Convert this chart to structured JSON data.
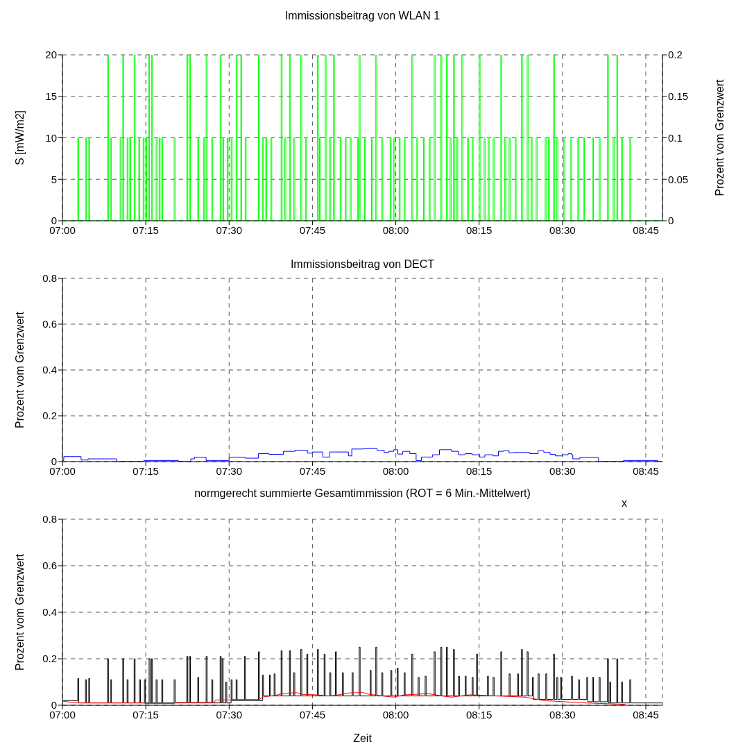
{
  "chart_data": [
    {
      "type": "line",
      "title": "Immissionsbeitrag von WLAN 1",
      "ylabel": "S [mW/m2]",
      "y2label": "Prozent vom Grenzwert",
      "xlim": [
        7,
        8.8
      ],
      "xticks": [
        {
          "value": 7,
          "label": "07:00"
        },
        {
          "value": 7.25,
          "label": "07:15"
        },
        {
          "value": 7.5,
          "label": "07:30"
        },
        {
          "value": 7.75,
          "label": "07:45"
        },
        {
          "value": 8,
          "label": "08:00"
        },
        {
          "value": 8.25,
          "label": "08:15"
        },
        {
          "value": 8.5,
          "label": "08:30"
        },
        {
          "value": 8.75,
          "label": "08:45"
        }
      ],
      "ylim": [
        0,
        20
      ],
      "yticks": [
        0,
        5,
        10,
        15,
        20
      ],
      "y2lim": [
        0,
        0.2
      ],
      "y2ticks": [
        0,
        0.05,
        0.1,
        0.15,
        0.2
      ],
      "grid": true,
      "series": [
        {
          "type": "step",
          "color": "#00ff00",
          "x": [
            7,
            7.046,
            7.049,
            7.069,
            7.072,
            7.079,
            7.082,
            7.135,
            7.138,
            7.144,
            7.147,
            7.173,
            7.176,
            7.181,
            7.184,
            7.194,
            7.197,
            7.202,
            7.205,
            7.215,
            7.218,
            7.229,
            7.232,
            7.242,
            7.245,
            7.25,
            7.253,
            7.258,
            7.261,
            7.267,
            7.27,
            7.281,
            7.284,
            7.29,
            7.293,
            7.298,
            7.301,
            7.335,
            7.338,
            7.373,
            7.376,
            7.381,
            7.384,
            7.406,
            7.409,
            7.423,
            7.426,
            7.431,
            7.434,
            7.448,
            7.451,
            7.473,
            7.476,
            7.481,
            7.484,
            7.494,
            7.497,
            7.506,
            7.509,
            7.521,
            7.524,
            7.535,
            7.538,
            7.548,
            7.551,
            7.588,
            7.591,
            7.6,
            7.603,
            7.61,
            7.613,
            7.625,
            7.628,
            7.656,
            7.659,
            7.667,
            7.67,
            7.681,
            7.684,
            7.694,
            7.697,
            7.715,
            7.718,
            7.729,
            7.732,
            7.765,
            7.768,
            7.771,
            7.774,
            7.788,
            7.791,
            7.802,
            7.805,
            7.813,
            7.816,
            7.833,
            7.836,
            7.848,
            7.851,
            7.863,
            7.866,
            7.885,
            7.888,
            7.89,
            7.893,
            7.906,
            7.909,
            7.927,
            7.93,
            7.94,
            7.943,
            7.958,
            7.961,
            7.983,
            7.986,
            7.994,
            7.997,
            8.01,
            8.013,
            8.025,
            8.028,
            8.048,
            8.051,
            8.063,
            8.066,
            8.083,
            8.086,
            8.1,
            8.103,
            8.115,
            8.118,
            8.135,
            8.138,
            8.152,
            8.155,
            8.163,
            8.166,
            8.173,
            8.176,
            8.183,
            8.186,
            8.198,
            8.201,
            8.215,
            8.218,
            8.229,
            8.232,
            8.25,
            8.253,
            8.265,
            8.268,
            8.277,
            8.28,
            8.292,
            8.295,
            8.315,
            8.318,
            8.327,
            8.33,
            8.34,
            8.343,
            8.358,
            8.361,
            8.377,
            8.38,
            8.394,
            8.397,
            8.406,
            8.409,
            8.421,
            8.424,
            8.448,
            8.451,
            8.458,
            8.461,
            8.473,
            8.476,
            8.483,
            8.486,
            8.504,
            8.507,
            8.525,
            8.528,
            8.546,
            8.549,
            8.563,
            8.566,
            8.59,
            8.593,
            8.61,
            8.613,
            8.635,
            8.638,
            8.652,
            8.655,
            8.663,
            8.666,
            8.677,
            8.68,
            8.702,
            8.705,
            8.8
          ],
          "values": [
            0,
            10,
            0,
            10,
            0,
            10,
            0,
            20,
            0,
            10,
            0,
            10,
            0,
            20,
            0,
            10,
            0,
            10,
            0,
            20,
            0,
            10,
            0,
            10,
            0,
            10,
            0,
            20,
            0,
            20,
            0,
            10,
            0,
            10,
            0,
            10,
            0,
            10,
            0,
            20,
            0,
            20,
            0,
            10,
            0,
            10,
            0,
            20,
            0,
            10,
            0,
            20,
            0,
            10,
            0,
            10,
            0,
            10,
            0,
            20,
            0,
            20,
            0,
            10,
            0,
            20,
            0,
            10,
            0,
            10,
            0,
            10,
            0,
            20,
            0,
            10,
            0,
            20,
            0,
            10,
            0,
            20,
            0,
            10,
            0,
            20,
            0,
            10,
            0,
            20,
            0,
            10,
            0,
            20,
            0,
            10,
            0,
            10,
            0,
            10,
            0,
            10,
            0,
            20,
            0,
            10,
            0,
            10,
            0,
            20,
            0,
            10,
            0,
            10,
            0,
            10,
            0,
            10,
            0,
            10,
            0,
            20,
            0,
            10,
            0,
            10,
            0,
            10,
            0,
            20,
            0,
            20,
            0,
            20,
            0,
            10,
            0,
            20,
            0,
            10,
            0,
            20,
            0,
            10,
            0,
            10,
            0,
            20,
            0,
            10,
            0,
            10,
            0,
            10,
            0,
            20,
            0,
            10,
            0,
            10,
            0,
            10,
            0,
            20,
            0,
            20,
            0,
            10,
            0,
            10,
            0,
            10,
            0,
            10,
            0,
            20,
            0,
            10,
            0,
            10,
            0,
            10,
            0,
            10,
            0,
            10,
            0,
            10,
            0,
            10,
            0,
            20,
            0,
            10,
            0,
            20,
            0,
            10,
            0,
            10,
            0,
            0
          ]
        }
      ]
    },
    {
      "type": "line",
      "title": "Immissionsbeitrag von DECT",
      "ylabel": "Prozent vom Grenzwert",
      "xlim": [
        7,
        8.8
      ],
      "xticks": [
        {
          "value": 7,
          "label": "07:00"
        },
        {
          "value": 7.25,
          "label": "07:15"
        },
        {
          "value": 7.5,
          "label": "07:30"
        },
        {
          "value": 7.75,
          "label": "07:45"
        },
        {
          "value": 8,
          "label": "08:00"
        },
        {
          "value": 8.25,
          "label": "08:15"
        },
        {
          "value": 8.5,
          "label": "08:30"
        },
        {
          "value": 8.75,
          "label": "08:45"
        }
      ],
      "ylim": [
        0,
        0.8
      ],
      "yticks": [
        0,
        0.2,
        0.4,
        0.6,
        0.8
      ],
      "grid": true,
      "series": [
        {
          "type": "step",
          "color": "#0000ff",
          "x": [
            7,
            7.004,
            7.056,
            7.077,
            7.163,
            7.244,
            7.348,
            7.385,
            7.396,
            7.431,
            7.5,
            7.548,
            7.588,
            7.619,
            7.663,
            7.698,
            7.735,
            7.75,
            7.781,
            7.802,
            7.858,
            7.868,
            7.902,
            7.944,
            7.965,
            7.979,
            7.994,
            8.006,
            8.021,
            8.042,
            8.061,
            8.077,
            8.11,
            8.131,
            8.167,
            8.188,
            8.208,
            8.229,
            8.252,
            8.267,
            8.292,
            8.308,
            8.323,
            8.34,
            8.354,
            8.402,
            8.427,
            8.444,
            8.463,
            8.479,
            8.5,
            8.517,
            8.527,
            8.531,
            8.552,
            8.608,
            8.683,
            8.785,
            8.8
          ],
          "values": [
            0.005,
            0.022,
            0.007,
            0.012,
            0,
            0.005,
            0,
            0.012,
            0.019,
            0.005,
            0.019,
            0.015,
            0.035,
            0.032,
            0.045,
            0.05,
            0.037,
            0.042,
            0.02,
            0.042,
            0.025,
            0.055,
            0.057,
            0.05,
            0.04,
            0.045,
            0.052,
            0.033,
            0.045,
            0.035,
            0.005,
            0.02,
            0.03,
            0.052,
            0.045,
            0.03,
            0.035,
            0.03,
            0.02,
            0.03,
            0.025,
            0.045,
            0.047,
            0.038,
            0.04,
            0.035,
            0.047,
            0.04,
            0.032,
            0.025,
            0.03,
            0.035,
            0.03,
            0.012,
            0.018,
            0,
            0.005,
            0,
            0
          ]
        }
      ]
    },
    {
      "type": "line",
      "title": "normgerecht summierte Gesamtimmission (ROT = 6 Min.-Mittelwert)",
      "xlabel": "Zeit",
      "ylabel": "Prozent vom Grenzwert",
      "annotations": [
        "x"
      ],
      "xlim": [
        7,
        8.8
      ],
      "xticks": [
        {
          "value": 7,
          "label": "07:00"
        },
        {
          "value": 7.25,
          "label": "07:15"
        },
        {
          "value": 7.5,
          "label": "07:30"
        },
        {
          "value": 7.75,
          "label": "07:45"
        },
        {
          "value": 8,
          "label": "08:00"
        },
        {
          "value": 8.25,
          "label": "08:15"
        },
        {
          "value": 8.5,
          "label": "08:30"
        },
        {
          "value": 8.75,
          "label": "08:45"
        }
      ],
      "ylim": [
        0,
        0.8
      ],
      "yticks": [
        0,
        0.2,
        0.4,
        0.6,
        0.8
      ],
      "grid": true,
      "series": [
        {
          "type": "step",
          "color": "#000000",
          "x": [
            7,
            7.046,
            7.049,
            7.069,
            7.072,
            7.079,
            7.082,
            7.135,
            7.138,
            7.144,
            7.147,
            7.181,
            7.184,
            7.194,
            7.197,
            7.215,
            7.218,
            7.231,
            7.234,
            7.246,
            7.249,
            7.26,
            7.263,
            7.267,
            7.27,
            7.281,
            7.284,
            7.298,
            7.301,
            7.335,
            7.338,
            7.373,
            7.376,
            7.381,
            7.384,
            7.406,
            7.409,
            7.431,
            7.434,
            7.448,
            7.451,
            7.473,
            7.476,
            7.479,
            7.482,
            7.49,
            7.493,
            7.506,
            7.509,
            7.521,
            7.524,
            7.546,
            7.549,
            7.588,
            7.591,
            7.6,
            7.603,
            7.621,
            7.624,
            7.635,
            7.638,
            7.656,
            7.659,
            7.681,
            7.684,
            7.694,
            7.697,
            7.715,
            7.718,
            7.733,
            7.736,
            7.765,
            7.768,
            7.785,
            7.788,
            7.802,
            7.805,
            7.819,
            7.822,
            7.84,
            7.843,
            7.869,
            7.872,
            7.89,
            7.893,
            7.923,
            7.926,
            7.94,
            7.943,
            7.958,
            7.961,
            7.985,
            7.988,
            8.004,
            8.007,
            8.025,
            8.028,
            8.048,
            8.051,
            8.067,
            8.07,
            8.088,
            8.091,
            8.115,
            8.118,
            8.135,
            8.138,
            8.152,
            8.155,
            8.173,
            8.176,
            8.188,
            8.191,
            8.208,
            8.211,
            8.229,
            8.232,
            8.242,
            8.245,
            8.275,
            8.278,
            8.292,
            8.295,
            8.315,
            8.318,
            8.34,
            8.343,
            8.365,
            8.368,
            8.377,
            8.38,
            8.394,
            8.397,
            8.41,
            8.413,
            8.427,
            8.43,
            8.45,
            8.453,
            8.473,
            8.476,
            8.483,
            8.486,
            8.494,
            8.497,
            8.527,
            8.53,
            8.548,
            8.551,
            8.573,
            8.576,
            8.59,
            8.593,
            8.61,
            8.613,
            8.635,
            8.638,
            8.642,
            8.645,
            8.663,
            8.666,
            8.677,
            8.68,
            8.702,
            8.705,
            8.8
          ],
          "values": [
            0.02,
            0.115,
            0.01,
            0.11,
            0.01,
            0.115,
            0.01,
            0.2,
            0.01,
            0.11,
            0.01,
            0.2,
            0.01,
            0.11,
            0.01,
            0.2,
            0.01,
            0.11,
            0.01,
            0.11,
            0.01,
            0.2,
            0.01,
            0.2,
            0.01,
            0.11,
            0.01,
            0.11,
            0.01,
            0.11,
            0.01,
            0.21,
            0.01,
            0.21,
            0.01,
            0.12,
            0.01,
            0.21,
            0.01,
            0.11,
            0.01,
            0.21,
            0.01,
            0.2,
            0.01,
            0.1,
            0.01,
            0.11,
            0.02,
            0.11,
            0.02,
            0.21,
            0.02,
            0.23,
            0.02,
            0.13,
            0.04,
            0.13,
            0.04,
            0.135,
            0.04,
            0.235,
            0.04,
            0.235,
            0.04,
            0.14,
            0.04,
            0.24,
            0.04,
            0.22,
            0.04,
            0.24,
            0.04,
            0.22,
            0.04,
            0.14,
            0.04,
            0.23,
            0.04,
            0.14,
            0.04,
            0.14,
            0.04,
            0.25,
            0.04,
            0.15,
            0.04,
            0.25,
            0.04,
            0.14,
            0.04,
            0.15,
            0.04,
            0.16,
            0.04,
            0.14,
            0.04,
            0.22,
            0.04,
            0.12,
            0.04,
            0.125,
            0.04,
            0.23,
            0.04,
            0.25,
            0.04,
            0.25,
            0.04,
            0.24,
            0.04,
            0.125,
            0.04,
            0.125,
            0.04,
            0.12,
            0.04,
            0.22,
            0.04,
            0.125,
            0.04,
            0.12,
            0.04,
            0.23,
            0.04,
            0.135,
            0.04,
            0.135,
            0.04,
            0.24,
            0.04,
            0.23,
            0.04,
            0.12,
            0.025,
            0.135,
            0.025,
            0.135,
            0.025,
            0.22,
            0.025,
            0.12,
            0.025,
            0.12,
            0.025,
            0.125,
            0.025,
            0.11,
            0.025,
            0.12,
            0.015,
            0.12,
            0.015,
            0.12,
            0.015,
            0.2,
            0.01,
            0.1,
            0.01,
            0.2,
            0.01,
            0.1,
            0.01,
            0.11,
            0.01,
            0.01
          ]
        },
        {
          "type": "line",
          "color": "#ff0000",
          "x": [
            7,
            7.028,
            7.06,
            7.244,
            7.25,
            7.335,
            7.34,
            7.455,
            7.46,
            7.506,
            7.51,
            7.591,
            7.6,
            7.64,
            7.66,
            7.681,
            7.7,
            7.72,
            7.76,
            7.8,
            7.83,
            7.847,
            7.861,
            7.9,
            7.917,
            7.972,
            7.993,
            8.028,
            8.097,
            8.139,
            8.167,
            8.222,
            8.306,
            8.389,
            8.444,
            8.507,
            8.569,
            8.625,
            8.688
          ],
          "values": [
            0.018,
            0.012,
            0.01,
            0.01,
            0.007,
            0.007,
            0.012,
            0.012,
            0.023,
            0.023,
            0.025,
            0.025,
            0.035,
            0.043,
            0.05,
            0.052,
            0.055,
            0.047,
            0.045,
            0.04,
            0.045,
            0.05,
            0.053,
            0.055,
            0.048,
            0.038,
            0.035,
            0.045,
            0.05,
            0.04,
            0.035,
            0.045,
            0.04,
            0.035,
            0.02,
            0.015,
            0.01,
            0.007,
            0.004
          ]
        }
      ]
    }
  ]
}
